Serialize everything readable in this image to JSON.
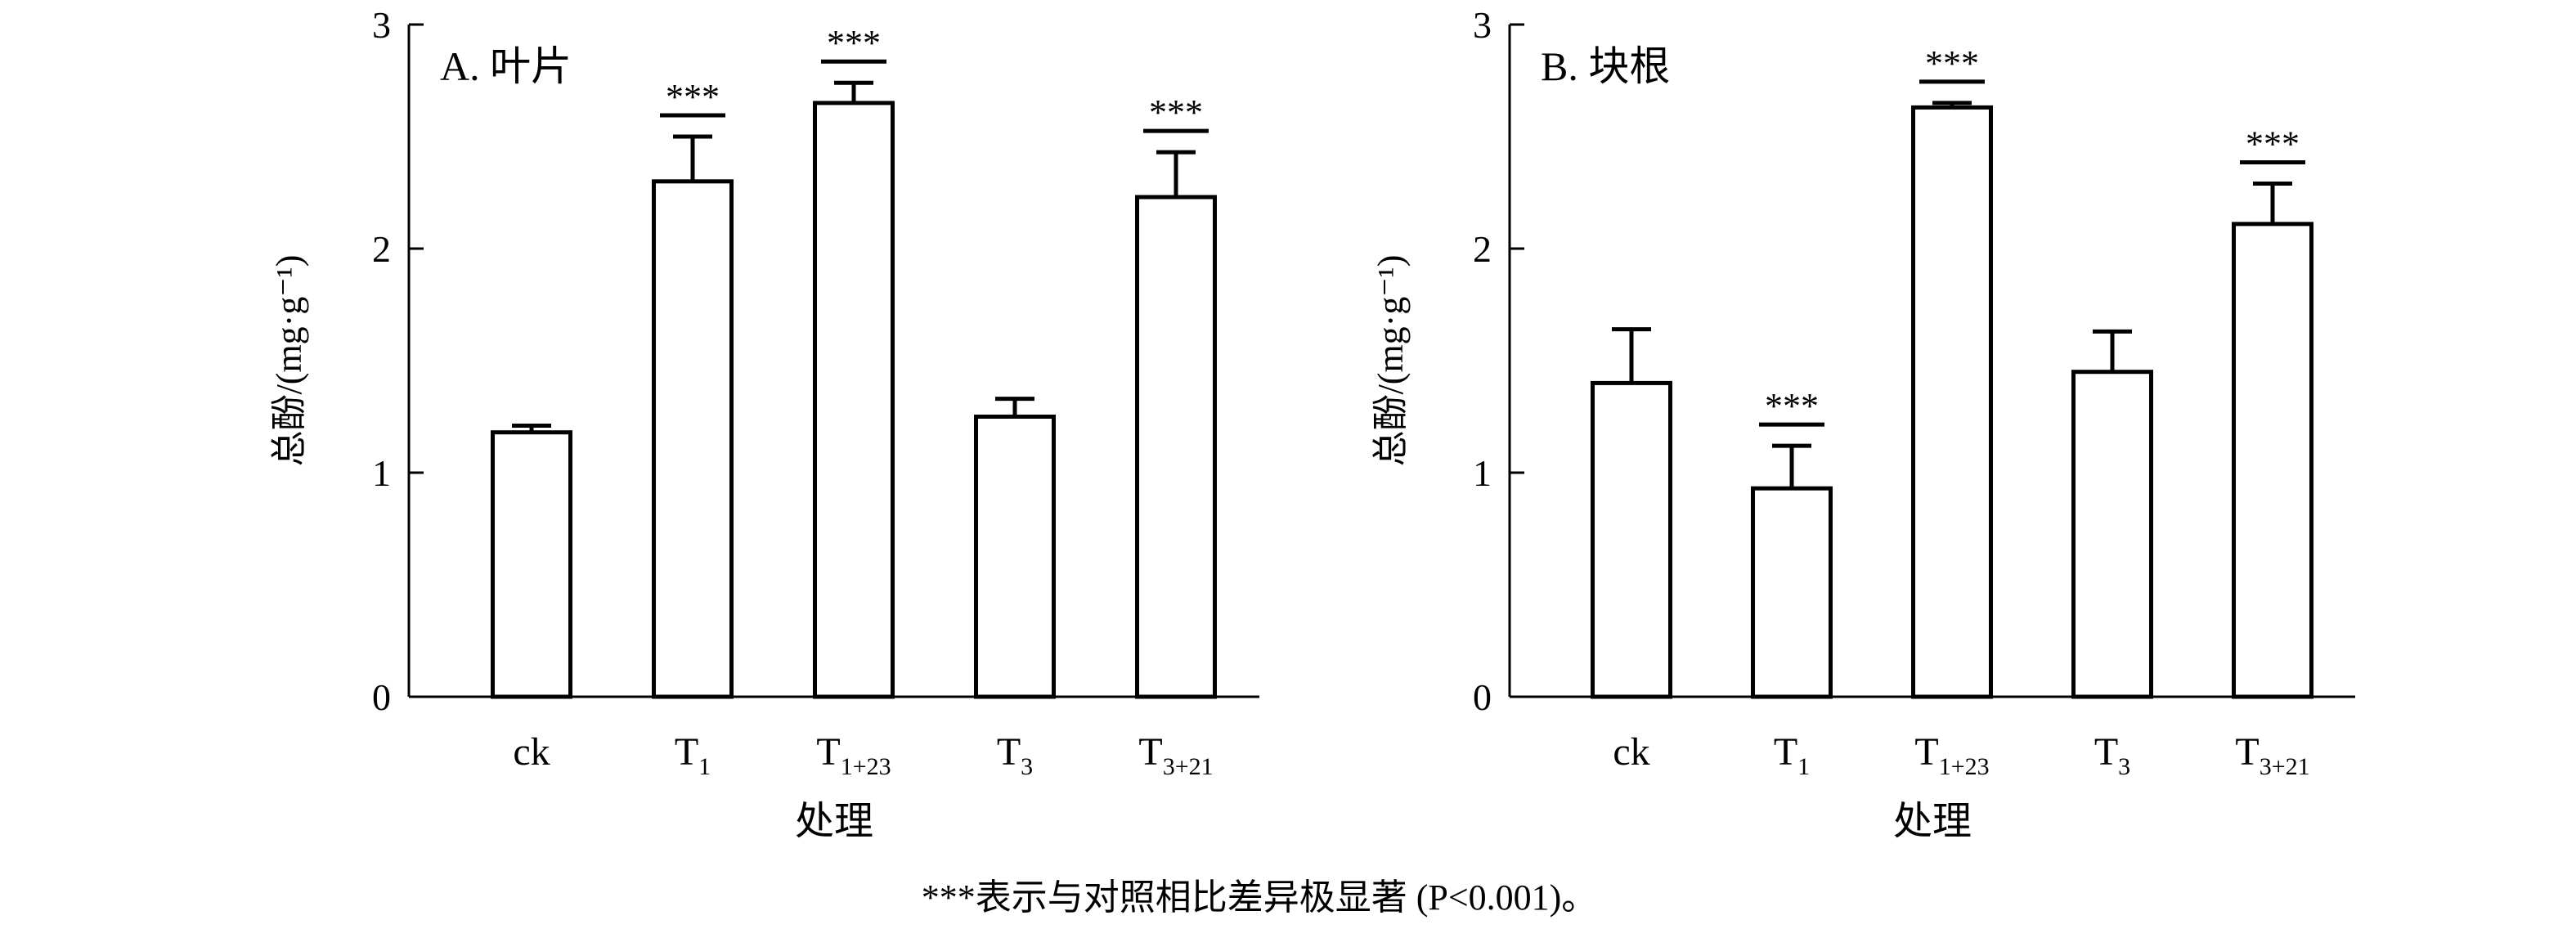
{
  "chart_data": [
    {
      "type": "bar",
      "panel_label": "A. 叶片",
      "categories": [
        {
          "main": "ck",
          "sub": ""
        },
        {
          "main": "T",
          "sub": "1"
        },
        {
          "main": "T",
          "sub": "1+23"
        },
        {
          "main": "T",
          "sub": "3"
        },
        {
          "main": "T",
          "sub": "3+21"
        }
      ],
      "values": [
        1.18,
        2.3,
        2.65,
        1.25,
        2.23
      ],
      "errors": [
        0.03,
        0.2,
        0.09,
        0.08,
        0.2
      ],
      "significance": [
        "",
        "***",
        "***",
        "",
        "***"
      ],
      "ylabel": "总酚/(mg·g⁻¹)",
      "xlabel": "处理",
      "ylim": [
        0,
        3
      ],
      "yticks": [
        0,
        1,
        2,
        3
      ]
    },
    {
      "type": "bar",
      "panel_label": "B. 块根",
      "categories": [
        {
          "main": "ck",
          "sub": ""
        },
        {
          "main": "T",
          "sub": "1"
        },
        {
          "main": "T",
          "sub": "1+23"
        },
        {
          "main": "T",
          "sub": "3"
        },
        {
          "main": "T",
          "sub": "3+21"
        }
      ],
      "values": [
        1.4,
        0.93,
        2.63,
        1.45,
        2.11
      ],
      "errors": [
        0.24,
        0.19,
        0.02,
        0.18,
        0.18
      ],
      "significance": [
        "",
        "***",
        "***",
        "",
        "***"
      ],
      "ylabel": "总酚/(mg·g⁻¹)",
      "xlabel": "处理",
      "ylim": [
        0,
        3
      ],
      "yticks": [
        0,
        1,
        2,
        3
      ]
    }
  ],
  "caption": "***表示与对照相比差异极显著 (P<0.001)。"
}
